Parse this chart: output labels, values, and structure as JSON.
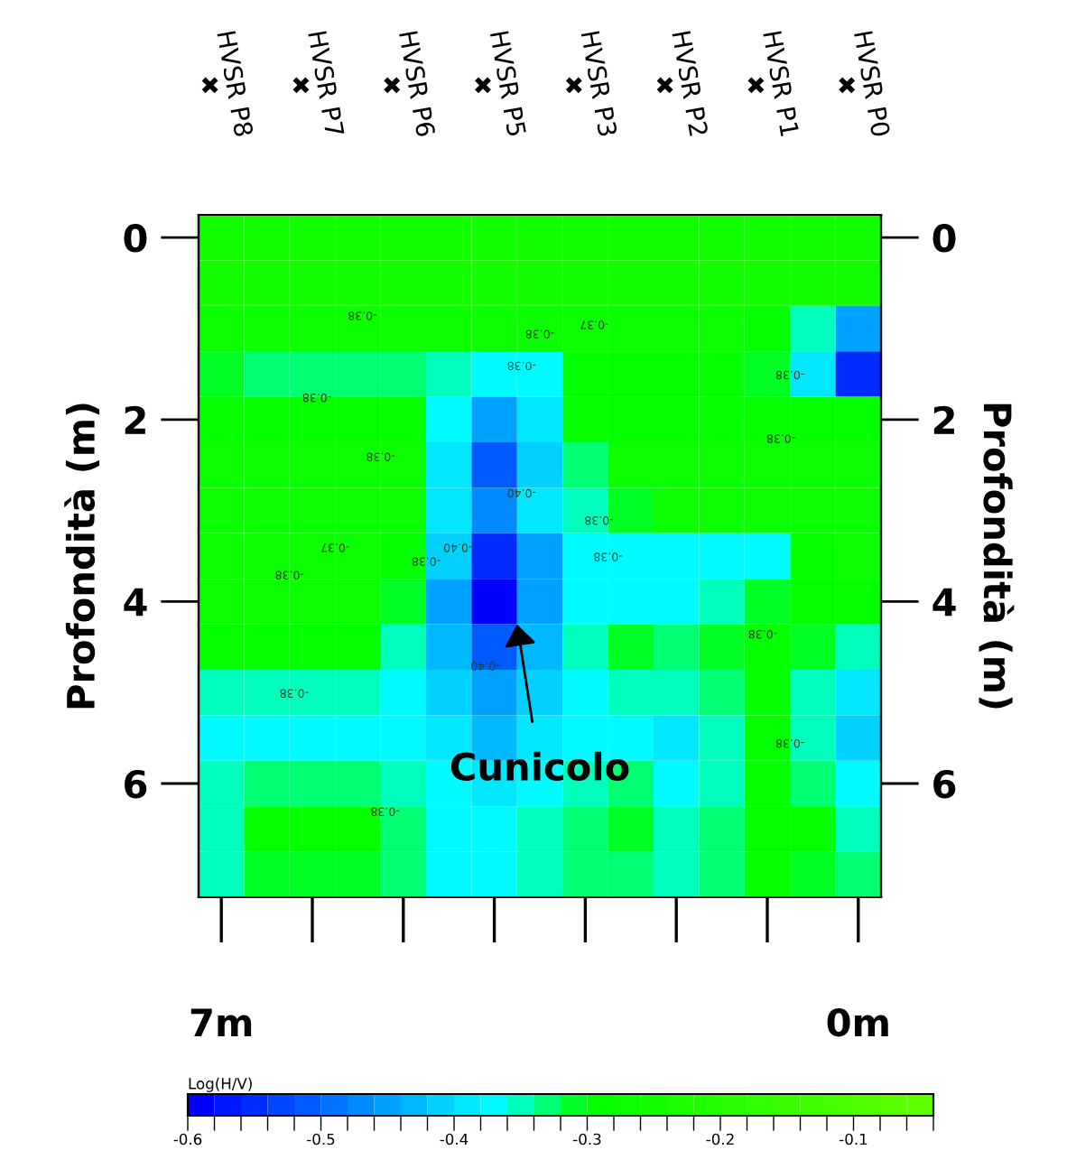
{
  "chart_data": {
    "type": "heatmap",
    "ylabel": "Profondità (m)",
    "y2label": "Profondità (m)",
    "clabel": "Log(H/V)",
    "categories": [
      "7m",
      null,
      null,
      null,
      null,
      null,
      null,
      null,
      null,
      null,
      null,
      null,
      null,
      null,
      "0m"
    ],
    "y_categories": [
      "0",
      null,
      null,
      null,
      "2",
      null,
      null,
      null,
      "4",
      null,
      null,
      null,
      "6",
      null,
      null
    ],
    "y2_categories": [
      "0",
      null,
      null,
      null,
      "2",
      null,
      null,
      null,
      "4",
      null,
      null,
      null,
      "6",
      null,
      null
    ],
    "clim": [
      -0.6,
      -0.04
    ],
    "cticks": [
      {
        "value": -0.6,
        "label": "-0.6"
      },
      {
        "value": -0.58,
        "label": null
      },
      {
        "value": -0.56,
        "label": null
      },
      {
        "value": -0.54,
        "label": null
      },
      {
        "value": -0.52,
        "label": null
      },
      {
        "value": -0.5,
        "label": "-0.5"
      },
      {
        "value": -0.48,
        "label": null
      },
      {
        "value": -0.46,
        "label": null
      },
      {
        "value": -0.44,
        "label": null
      },
      {
        "value": -0.42,
        "label": null
      },
      {
        "value": -0.4,
        "label": "-0.4"
      },
      {
        "value": -0.38,
        "label": null
      },
      {
        "value": -0.36,
        "label": null
      },
      {
        "value": -0.34,
        "label": null
      },
      {
        "value": -0.32,
        "label": null
      },
      {
        "value": -0.3,
        "label": "-0.3"
      },
      {
        "value": -0.28,
        "label": null
      },
      {
        "value": -0.26,
        "label": null
      },
      {
        "value": -0.24,
        "label": null
      },
      {
        "value": -0.22,
        "label": null
      },
      {
        "value": -0.2,
        "label": "-0.2"
      },
      {
        "value": -0.18,
        "label": null
      },
      {
        "value": -0.16,
        "label": null
      },
      {
        "value": -0.14,
        "label": null
      },
      {
        "value": -0.12,
        "label": null
      },
      {
        "value": -0.1,
        "label": "-0.1"
      },
      {
        "value": -0.08,
        "label": null
      },
      {
        "value": -0.06,
        "label": null
      },
      {
        "value": -0.04,
        "label": null
      }
    ],
    "cells": [
      [
        -0.25,
        -0.25,
        -0.25,
        -0.25,
        -0.25,
        -0.25,
        -0.25,
        -0.25,
        -0.25,
        -0.25,
        -0.25,
        -0.25,
        -0.25,
        -0.25,
        -0.26
      ],
      [
        -0.26,
        -0.26,
        -0.26,
        -0.26,
        -0.26,
        -0.26,
        -0.26,
        -0.26,
        -0.26,
        -0.26,
        -0.26,
        -0.26,
        -0.26,
        -0.26,
        -0.26
      ],
      [
        -0.28,
        -0.28,
        -0.28,
        -0.28,
        -0.28,
        -0.28,
        -0.28,
        -0.28,
        -0.28,
        -0.28,
        -0.28,
        -0.28,
        -0.3,
        -0.36,
        -0.45
      ],
      [
        -0.32,
        -0.34,
        -0.34,
        -0.34,
        -0.34,
        -0.36,
        -0.38,
        -0.37,
        -0.3,
        -0.3,
        -0.3,
        -0.3,
        -0.32,
        -0.4,
        -0.55
      ],
      [
        -0.3,
        -0.3,
        -0.3,
        -0.3,
        -0.3,
        -0.38,
        -0.45,
        -0.4,
        -0.3,
        -0.3,
        -0.3,
        -0.3,
        -0.3,
        -0.3,
        -0.3
      ],
      [
        -0.28,
        -0.28,
        -0.28,
        -0.28,
        -0.28,
        -0.4,
        -0.52,
        -0.42,
        -0.34,
        -0.28,
        -0.28,
        -0.28,
        -0.28,
        -0.28,
        -0.28
      ],
      [
        -0.28,
        -0.28,
        -0.28,
        -0.28,
        -0.28,
        -0.4,
        -0.48,
        -0.4,
        -0.36,
        -0.32,
        -0.28,
        -0.28,
        -0.28,
        -0.28,
        -0.28
      ],
      [
        -0.28,
        -0.28,
        -0.28,
        -0.28,
        -0.3,
        -0.42,
        -0.56,
        -0.45,
        -0.38,
        -0.38,
        -0.38,
        -0.38,
        -0.38,
        -0.3,
        -0.28
      ],
      [
        -0.28,
        -0.28,
        -0.28,
        -0.28,
        -0.32,
        -0.45,
        -0.6,
        -0.46,
        -0.38,
        -0.38,
        -0.38,
        -0.36,
        -0.32,
        -0.3,
        -0.3
      ],
      [
        -0.3,
        -0.3,
        -0.3,
        -0.3,
        -0.36,
        -0.44,
        -0.52,
        -0.44,
        -0.36,
        -0.32,
        -0.34,
        -0.32,
        -0.3,
        -0.32,
        -0.36
      ],
      [
        -0.36,
        -0.36,
        -0.36,
        -0.36,
        -0.38,
        -0.42,
        -0.46,
        -0.42,
        -0.38,
        -0.36,
        -0.36,
        -0.34,
        -0.3,
        -0.36,
        -0.4
      ],
      [
        -0.38,
        -0.38,
        -0.38,
        -0.38,
        -0.38,
        -0.4,
        -0.44,
        -0.4,
        -0.38,
        -0.38,
        -0.4,
        -0.36,
        -0.3,
        -0.36,
        -0.42
      ],
      [
        -0.36,
        -0.34,
        -0.34,
        -0.34,
        -0.36,
        -0.38,
        -0.4,
        -0.38,
        -0.36,
        -0.34,
        -0.38,
        -0.36,
        -0.3,
        -0.34,
        -0.38
      ],
      [
        -0.36,
        -0.3,
        -0.3,
        -0.3,
        -0.34,
        -0.38,
        -0.38,
        -0.36,
        -0.34,
        -0.32,
        -0.36,
        -0.34,
        -0.3,
        -0.3,
        -0.36
      ],
      [
        -0.36,
        -0.32,
        -0.32,
        -0.32,
        -0.34,
        -0.38,
        -0.38,
        -0.36,
        -0.34,
        -0.34,
        -0.36,
        -0.34,
        -0.3,
        -0.32,
        -0.34
      ]
    ],
    "annotations": [
      "HVSR P8",
      "HVSR P7",
      "HVSR P6",
      "HVSR P5",
      "HVSR P3",
      "HVSR P2",
      "HVSR P1",
      "HVSR P0",
      "Cunicolo",
      "-0.38",
      "-0.38",
      "-0.37",
      "-0.38",
      "-0.38",
      "-0.38",
      "-0.38",
      "-0.38",
      "-0.40",
      "-0.38",
      "-0.37",
      "-0.38",
      "-0.40",
      "-0.38",
      "-0.38",
      "-0.38",
      "-0.38",
      "-0.40",
      "-0.38",
      "-0.38"
    ]
  }
}
